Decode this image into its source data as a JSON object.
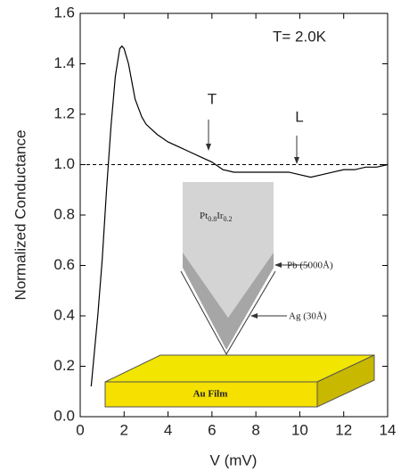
{
  "chart_data": {
    "type": "line",
    "x_label": "V (mV)",
    "y_label": "Normalized Conductance",
    "series": [
      {
        "color": "#000000",
        "x": [
          0.5,
          0.8,
          1.0,
          1.2,
          1.4,
          1.6,
          1.8,
          1.9,
          2.0,
          2.2,
          2.5,
          2.8,
          3.0,
          3.5,
          4.0,
          4.5,
          5.0,
          5.5,
          6.0,
          6.5,
          7.0,
          7.5,
          8.0,
          8.5,
          9.0,
          9.5,
          10.0,
          10.5,
          11.0,
          11.5,
          12.0,
          12.5,
          13.0,
          13.5,
          14.0
        ],
        "values": [
          0.12,
          0.4,
          0.62,
          0.9,
          1.15,
          1.35,
          1.46,
          1.47,
          1.46,
          1.4,
          1.26,
          1.19,
          1.16,
          1.12,
          1.09,
          1.07,
          1.05,
          1.03,
          1.01,
          0.98,
          0.97,
          0.97,
          0.97,
          0.97,
          0.97,
          0.97,
          0.96,
          0.95,
          0.96,
          0.97,
          0.98,
          0.98,
          0.99,
          0.99,
          1.0
        ]
      }
    ],
    "reference_line": 1,
    "xlim": [
      0,
      14
    ],
    "xticks": [
      0,
      2,
      4,
      6,
      8,
      10,
      12,
      14
    ],
    "ylim": [
      0,
      1.6
    ],
    "yticks": [
      {
        "value": 0,
        "label": "0.0"
      },
      0.2,
      0.4,
      0.6,
      0.8,
      {
        "value": 1,
        "label": "1.0"
      },
      1.2,
      1.4,
      1.6
    ],
    "annotations": [
      "T= 2.0K",
      "T",
      "L"
    ],
    "inset": {
      "tip_label_parts": [
        "Pt",
        "0.8",
        "Ir",
        "0.2"
      ],
      "pb_label": "Pb (5000Å)",
      "ag_label": "Ag (30Å)",
      "film_label": "Au Film"
    }
  }
}
